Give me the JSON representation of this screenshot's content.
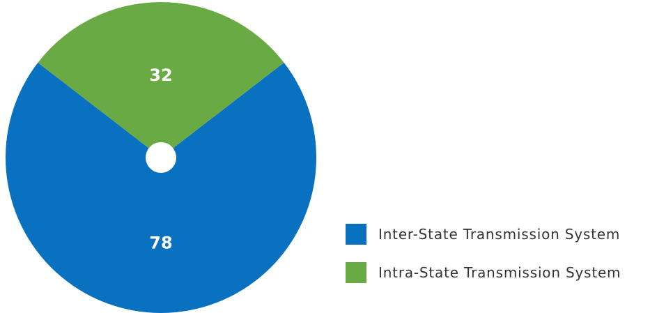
{
  "chart_data": {
    "type": "pie",
    "title": "",
    "categories": [
      "Inter-State Transmission System",
      "Intra-State Transmission System"
    ],
    "values": [
      78,
      32
    ],
    "colors": [
      "#0a70c0",
      "#6aaa44"
    ],
    "data_labels": [
      "78",
      "32"
    ],
    "legend_position": "bottom-right",
    "legend": [
      {
        "label": "Inter-State Transmission System",
        "color": "#0a70c0"
      },
      {
        "label": "Intra-State Transmission System",
        "color": "#6aaa44"
      }
    ]
  }
}
